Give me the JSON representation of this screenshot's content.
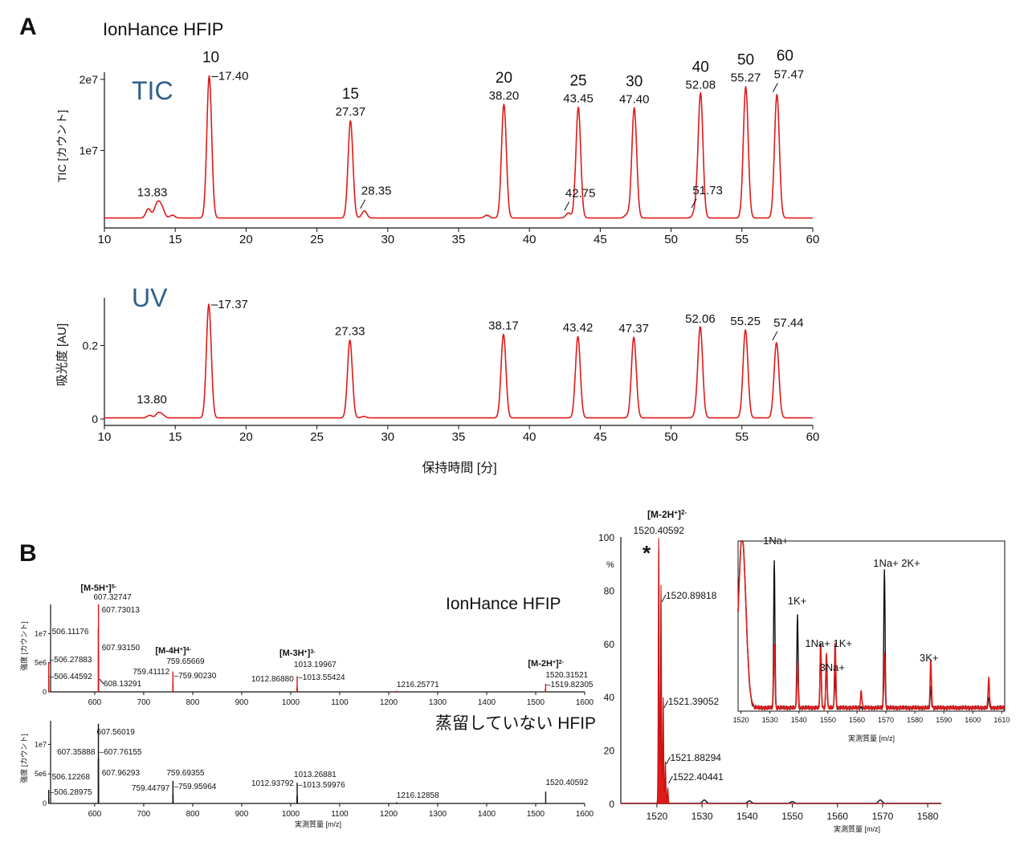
{
  "panels": {
    "A": {
      "letter": "A",
      "legend_label": "IonHance HFIP",
      "tic": {
        "trace_label": "TIC",
        "ylabel": "TIC [カウント]",
        "yticks": [
          {
            "v": 20000000,
            "label": "2e7"
          },
          {
            "v": 10000000,
            "label": "1e7"
          }
        ],
        "ylim": [
          0,
          21000000
        ],
        "xlim": [
          10,
          60
        ],
        "xticks": [
          10,
          15,
          20,
          25,
          30,
          35,
          40,
          45,
          50,
          55,
          60
        ],
        "baseline": 500000,
        "peaks": [
          {
            "rt": 13.1,
            "h": 1300000
          },
          {
            "rt": 13.6,
            "h": 1000000
          },
          {
            "rt": 13.83,
            "h": 1700000
          },
          {
            "rt": 14.1,
            "h": 1100000
          },
          {
            "rt": 14.8,
            "h": 400000
          },
          {
            "rt": 17.4,
            "h": 20000000
          },
          {
            "rt": 27.37,
            "h": 13700000
          },
          {
            "rt": 28.35,
            "h": 1000000
          },
          {
            "rt": 37.0,
            "h": 400000
          },
          {
            "rt": 38.2,
            "h": 16000000
          },
          {
            "rt": 42.75,
            "h": 700000
          },
          {
            "rt": 43.45,
            "h": 15600000
          },
          {
            "rt": 46.9,
            "h": 500000
          },
          {
            "rt": 47.4,
            "h": 15500000
          },
          {
            "rt": 51.73,
            "h": 1100000
          },
          {
            "rt": 52.08,
            "h": 17500000
          },
          {
            "rt": 55.27,
            "h": 18500000
          },
          {
            "rt": 57.47,
            "h": 17400000
          }
        ],
        "labels": [
          {
            "rt": 17.4,
            "text": "17.40",
            "dash": true,
            "oligo": "10"
          },
          {
            "rt": 27.37,
            "text": "27.37",
            "oligo": "15"
          },
          {
            "rt": 28.35,
            "text": "28.35",
            "lead": true
          },
          {
            "rt": 38.2,
            "text": "38.20",
            "oligo": "20"
          },
          {
            "rt": 42.75,
            "text": "42.75",
            "lead": true
          },
          {
            "rt": 43.45,
            "text": "43.45",
            "oligo": "25"
          },
          {
            "rt": 47.4,
            "text": "47.40",
            "oligo": "30"
          },
          {
            "rt": 51.73,
            "text": "51.73",
            "lead": true
          },
          {
            "rt": 52.08,
            "text": "52.08",
            "oligo": "40"
          },
          {
            "rt": 55.27,
            "text": "55.27",
            "oligo": "50"
          },
          {
            "rt": 57.47,
            "text": "57.47",
            "lead": true,
            "oligo": "60"
          },
          {
            "rt": 13.83,
            "text": "13.83"
          }
        ]
      },
      "uv": {
        "trace_label": "UV",
        "ylabel": "吸光度 [AU]",
        "xlabel": "保持時間 [分]",
        "yticks": [
          {
            "v": 0.2,
            "label": "0.2"
          },
          {
            "v": 0,
            "label": "0"
          }
        ],
        "ylim": [
          0,
          0.33
        ],
        "xlim": [
          10,
          60
        ],
        "xticks": [
          10,
          15,
          20,
          25,
          30,
          35,
          40,
          45,
          50,
          55,
          60
        ],
        "baseline": 0.003,
        "peaks": [
          {
            "rt": 13.2,
            "h": 0.007
          },
          {
            "rt": 13.8,
            "h": 0.013
          },
          {
            "rt": 14.1,
            "h": 0.008
          },
          {
            "rt": 17.37,
            "h": 0.31
          },
          {
            "rt": 27.33,
            "h": 0.212
          },
          {
            "rt": 28.3,
            "h": 0.004
          },
          {
            "rt": 38.17,
            "h": 0.228
          },
          {
            "rt": 43.42,
            "h": 0.222
          },
          {
            "rt": 47.37,
            "h": 0.22
          },
          {
            "rt": 51.8,
            "h": 0.01
          },
          {
            "rt": 52.06,
            "h": 0.246
          },
          {
            "rt": 55.25,
            "h": 0.24
          },
          {
            "rt": 57.44,
            "h": 0.205
          }
        ],
        "labels": [
          {
            "rt": 17.37,
            "text": "17.37",
            "dash": true
          },
          {
            "rt": 27.33,
            "text": "27.33"
          },
          {
            "rt": 38.17,
            "text": "38.17"
          },
          {
            "rt": 43.42,
            "text": "43.42"
          },
          {
            "rt": 47.37,
            "text": "47.37"
          },
          {
            "rt": 52.06,
            "text": "52.06"
          },
          {
            "rt": 55.25,
            "text": "55.25"
          },
          {
            "rt": 57.44,
            "text": "57.44",
            "lead": true
          },
          {
            "rt": 13.8,
            "text": "13.80"
          }
        ]
      }
    },
    "B": {
      "letter": "B",
      "top_spectrum": {
        "title": "IonHance HFIP",
        "ylabel": "強度 [カウント]",
        "xlabel": "",
        "yticks": [
          {
            "v": 10000000,
            "label": "1e7"
          },
          {
            "v": 5000000,
            "label": "5e6"
          },
          {
            "v": 0,
            "label": "0"
          }
        ],
        "ylim": [
          0,
          15000000
        ],
        "xlim": [
          510,
          1600
        ],
        "xticks": [
          600,
          700,
          800,
          900,
          1000,
          1100,
          1200,
          1300,
          1400,
          1500,
          1600
        ],
        "sticks": [
          {
            "mz": 506.11,
            "h": 5000000
          },
          {
            "mz": 506.28,
            "h": 2700000
          },
          {
            "mz": 506.44,
            "h": 1300000
          },
          {
            "mz": 607.33,
            "h": 11000000
          },
          {
            "mz": 607.73,
            "h": 15000000
          },
          {
            "mz": 607.93,
            "h": 7000000
          },
          {
            "mz": 608.13,
            "h": 2500000
          },
          {
            "mz": 759.41,
            "h": 1500000
          },
          {
            "mz": 759.66,
            "h": 3500000
          },
          {
            "mz": 759.9,
            "h": 1500000
          },
          {
            "mz": 1012.87,
            "h": 700000
          },
          {
            "mz": 1013.2,
            "h": 2700000
          },
          {
            "mz": 1013.55,
            "h": 1000000
          },
          {
            "mz": 1216.26,
            "h": 200000
          },
          {
            "mz": 1519.82,
            "h": 600000
          },
          {
            "mz": 1520.32,
            "h": 1400000
          }
        ],
        "labels": [
          {
            "mz": 607.33,
            "text": "607.32747",
            "dx": -6,
            "ly": 747
          },
          {
            "mz": 607.73,
            "text": "607.73013",
            "dx": 4,
            "ly": 763
          },
          {
            "mz": 506.11,
            "text": "506.11176",
            "dx": 4,
            "ly": 790
          },
          {
            "mz": 607.93,
            "text": "607.93150",
            "dx": 4,
            "ly": 810
          },
          {
            "mz": 506.28,
            "text": "506.27883",
            "dash": true,
            "ly": 825
          },
          {
            "mz": 506.44,
            "text": "506.44592",
            "dash": true,
            "ly": 846
          },
          {
            "mz": 608.13,
            "text": "608.13291",
            "lead": true,
            "ly": 855
          },
          {
            "mz": 759.66,
            "text": "759.65669",
            "dx": -8,
            "ly": 827
          },
          {
            "mz": 759.41,
            "text": "759.41112",
            "dx": -4,
            "ly": 840,
            "anchor": "end"
          },
          {
            "mz": 759.9,
            "text": "759.90230",
            "dash": true,
            "ly": 845
          },
          {
            "mz": 1013.2,
            "text": "1013.19967",
            "dx": -4,
            "ly": 831
          },
          {
            "mz": 1012.87,
            "text": "1012.86880",
            "dx": -4,
            "ly": 849,
            "anchor": "end"
          },
          {
            "mz": 1013.55,
            "text": "1013.55424",
            "dash": true,
            "ly": 847
          },
          {
            "mz": 1216.26,
            "text": "1216.25771",
            "ly": 856
          },
          {
            "mz": 1520.32,
            "text": "1520.31521",
            "ly": 844
          },
          {
            "mz": 1519.82,
            "text": "1519.82305",
            "dash": true,
            "ly": 856,
            "anchor": "end"
          }
        ],
        "ion_labels": [
          {
            "mz": 607.33,
            "base": "[M-5H",
            "sup": "5-",
            "ly": 736
          },
          {
            "mz": 759.66,
            "base": "[M-4H",
            "sup": "4-",
            "ly": 814
          },
          {
            "mz": 1013.2,
            "base": "[M-3H",
            "sup": "3-",
            "ly": 817
          },
          {
            "mz": 1520.32,
            "base": "[M-2H",
            "sup": "2-",
            "ly": 830
          }
        ]
      },
      "bottom_spectrum": {
        "title": "蒸留していない HFIP",
        "ylabel": "強度 [カウント]",
        "xlabel": "実測質量 [m/z]",
        "yticks": [
          {
            "v": 10000000,
            "label": "1e7"
          },
          {
            "v": 5000000,
            "label": "5e6"
          },
          {
            "v": 0,
            "label": "0"
          }
        ],
        "ylim": [
          0,
          14000000
        ],
        "xlim": [
          510,
          1600
        ],
        "xticks": [
          600,
          700,
          800,
          900,
          1000,
          1100,
          1200,
          1300,
          1400,
          1500,
          1600
        ],
        "sticks": [
          {
            "mz": 506.12,
            "h": 2300000
          },
          {
            "mz": 506.29,
            "h": 1000000
          },
          {
            "mz": 607.36,
            "h": 7500000
          },
          {
            "mz": 607.56,
            "h": 13500000
          },
          {
            "mz": 607.76,
            "h": 7700000
          },
          {
            "mz": 607.96,
            "h": 3600000
          },
          {
            "mz": 759.45,
            "h": 1500000
          },
          {
            "mz": 759.69,
            "h": 3800000
          },
          {
            "mz": 759.96,
            "h": 1500000
          },
          {
            "mz": 1012.94,
            "h": 1200000
          },
          {
            "mz": 1013.27,
            "h": 3500000
          },
          {
            "mz": 1013.6,
            "h": 1500000
          },
          {
            "mz": 1216.13,
            "h": 200000
          },
          {
            "mz": 1520.41,
            "h": 2000000
          }
        ],
        "labels": [
          {
            "mz": 607.56,
            "text": "607.56019",
            "dx": -2,
            "ly": 915
          },
          {
            "mz": 607.36,
            "text": "607.35888",
            "dx": -4,
            "ly": 940,
            "anchor": "end"
          },
          {
            "mz": 607.76,
            "text": "607.76155",
            "dash": true,
            "ly": 940
          },
          {
            "mz": 607.96,
            "text": "607.96293",
            "dx": 4,
            "ly": 966
          },
          {
            "mz": 506.12,
            "text": "506.12268",
            "dx": 4,
            "ly": 971
          },
          {
            "mz": 506.29,
            "text": "506.28975",
            "dash": true,
            "ly": 990
          },
          {
            "mz": 759.69,
            "text": "759.69355",
            "dx": -8,
            "ly": 966
          },
          {
            "mz": 759.45,
            "text": "759.44797",
            "dx": -4,
            "ly": 985,
            "anchor": "end"
          },
          {
            "mz": 759.96,
            "text": "759.95964",
            "dash": true,
            "ly": 983
          },
          {
            "mz": 1013.27,
            "text": "1013.26881",
            "dx": -4,
            "ly": 968
          },
          {
            "mz": 1012.94,
            "text": "1012.93792",
            "dx": -4,
            "ly": 979,
            "anchor": "end"
          },
          {
            "mz": 1013.6,
            "text": "1013.59976",
            "dash": true,
            "ly": 981
          },
          {
            "mz": 1216.13,
            "text": "1216.12858",
            "ly": 994
          },
          {
            "mz": 1520.41,
            "text": "1520.40592",
            "ly": 978
          }
        ]
      },
      "zoom_spectrum": {
        "ion_label": {
          "base": "[M-2H",
          "sup": "2-"
        },
        "asterisk": "*",
        "ylabel_unit": "%",
        "xlabel": "実測質量 [m/z]",
        "yticks": [
          {
            "v": 100,
            "label": "100"
          },
          {
            "v": 80,
            "label": "80"
          },
          {
            "v": 60,
            "label": "60"
          },
          {
            "v": 40,
            "label": "40"
          },
          {
            "v": 20,
            "label": "20"
          },
          {
            "v": 0,
            "label": "0"
          }
        ],
        "ylim": [
          0,
          100
        ],
        "xlim": [
          1512,
          1583
        ],
        "xticks": [
          1520,
          1530,
          1540,
          1550,
          1560,
          1570,
          1580
        ],
        "peaks": [
          {
            "mz": 1520.41,
            "h": 100
          },
          {
            "mz": 1520.9,
            "h": 82
          },
          {
            "mz": 1521.39,
            "h": 40
          },
          {
            "mz": 1521.88,
            "h": 16
          },
          {
            "mz": 1522.4,
            "h": 6
          }
        ],
        "labels": [
          {
            "mz": 1520.41,
            "text": "1520.40592"
          },
          {
            "mz": 1520.9,
            "text": "1520.89818"
          },
          {
            "mz": 1521.39,
            "text": "1521.39052"
          },
          {
            "mz": 1521.88,
            "text": "1521.88294"
          },
          {
            "mz": 1522.4,
            "text": "1522.40441"
          }
        ],
        "small_bumps": [
          {
            "mz": 1530.5,
            "h": 1.3
          },
          {
            "mz": 1540.5,
            "h": 1
          },
          {
            "mz": 1550,
            "h": 0.7
          },
          {
            "mz": 1569.5,
            "h": 1.3
          }
        ]
      },
      "inset": {
        "xlabel": "実測質量 [m/z]",
        "xlim": [
          1519,
          1611
        ],
        "xticks": [
          1520,
          1530,
          1540,
          1550,
          1560,
          1570,
          1580,
          1590,
          1600,
          1610
        ],
        "ylim": [
          0,
          100
        ],
        "black_peaks": [
          {
            "mz": 1531.5,
            "h": 86
          },
          {
            "mz": 1539.5,
            "h": 55
          },
          {
            "mz": 1547.5,
            "h": 38
          },
          {
            "mz": 1549.5,
            "h": 30
          },
          {
            "mz": 1552.5,
            "h": 20
          },
          {
            "mz": 1569.5,
            "h": 82
          },
          {
            "mz": 1585.5,
            "h": 12
          },
          {
            "mz": 1605.5,
            "h": 6
          }
        ],
        "red_peaks": [
          {
            "mz": 1531.5,
            "h": 38
          },
          {
            "mz": 1539.5,
            "h": 27
          },
          {
            "mz": 1547.5,
            "h": 35
          },
          {
            "mz": 1549.5,
            "h": 32
          },
          {
            "mz": 1552.5,
            "h": 38
          },
          {
            "mz": 1561.5,
            "h": 10
          },
          {
            "mz": 1569.5,
            "h": 32
          },
          {
            "mz": 1585.5,
            "h": 28
          },
          {
            "mz": 1605.5,
            "h": 18
          }
        ],
        "annotations": [
          {
            "mz": 1531.5,
            "text": "1Na+",
            "ly": 678
          },
          {
            "mz": 1540,
            "text": "1K+",
            "ly": 753
          },
          {
            "mz": 1546,
            "text": "1Na+ 1K+",
            "ly": 806
          },
          {
            "mz": 1551,
            "text": "3Na+",
            "ly": 836
          },
          {
            "mz": 1569.5,
            "text": "1Na+ 2K+",
            "ly": 706
          },
          {
            "mz": 1585.5,
            "text": "3K+",
            "ly": 824
          }
        ]
      }
    }
  }
}
